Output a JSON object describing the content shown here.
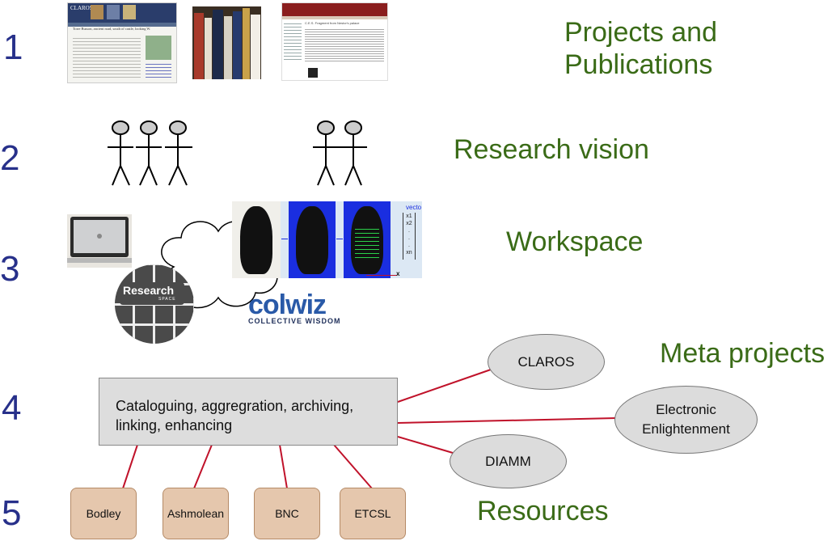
{
  "rows": {
    "r1": {
      "number": "1",
      "label_line1": "Projects and",
      "label_line2": "Publications"
    },
    "r2": {
      "number": "2",
      "label": "Research vision"
    },
    "r3": {
      "number": "3",
      "label": "Workspace"
    },
    "r4": {
      "number": "4",
      "label": "Meta projects"
    },
    "r5": {
      "number": "5",
      "label": "Resources"
    }
  },
  "thumbnails": {
    "claros_header": "CLAROS",
    "claros_title": "Torre Busson, ancient road, south of castle, looking W.",
    "doc_title": "C.E.S. Fragment from Nestor's palace",
    "vector_label": "vecto",
    "vector_vars": [
      "x1",
      "x2",
      ".",
      ".",
      ".",
      "xn"
    ],
    "axis_x": "x"
  },
  "logos": {
    "researchspace_line1": "Research",
    "researchspace_line2": "SPACE",
    "colwiz_name": "colwiz",
    "colwiz_tagline": "COLLECTIVE WISDOM"
  },
  "central_box": {
    "line1": "Cataloguing, aggregration, archiving,",
    "line2": "linking, enhancing"
  },
  "meta_projects": [
    "CLAROS",
    "Electronic Enlightenment",
    "DIAMM"
  ],
  "meta_projects_lines": {
    "ee_line1": "Electronic",
    "ee_line2": "Enlightenment"
  },
  "resources": [
    "Bodley",
    "Ashmolean",
    "BNC",
    "ETCSL"
  ],
  "colors": {
    "number": "#27308a",
    "label": "#3a6b17",
    "connector": "#c0122a"
  }
}
